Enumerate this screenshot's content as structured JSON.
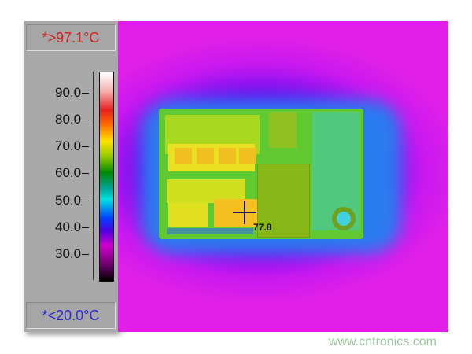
{
  "scale": {
    "max_label": "*>97.1°C",
    "min_label": "*<20.0°C",
    "ticks": [
      "90.0",
      "80.0",
      "70.0",
      "60.0",
      "50.0",
      "40.0",
      "30.0"
    ],
    "max_color": "#d42020",
    "min_color": "#2a2ad0"
  },
  "image": {
    "spot_value": "77.8"
  },
  "watermark": "www.cntronics.com"
}
